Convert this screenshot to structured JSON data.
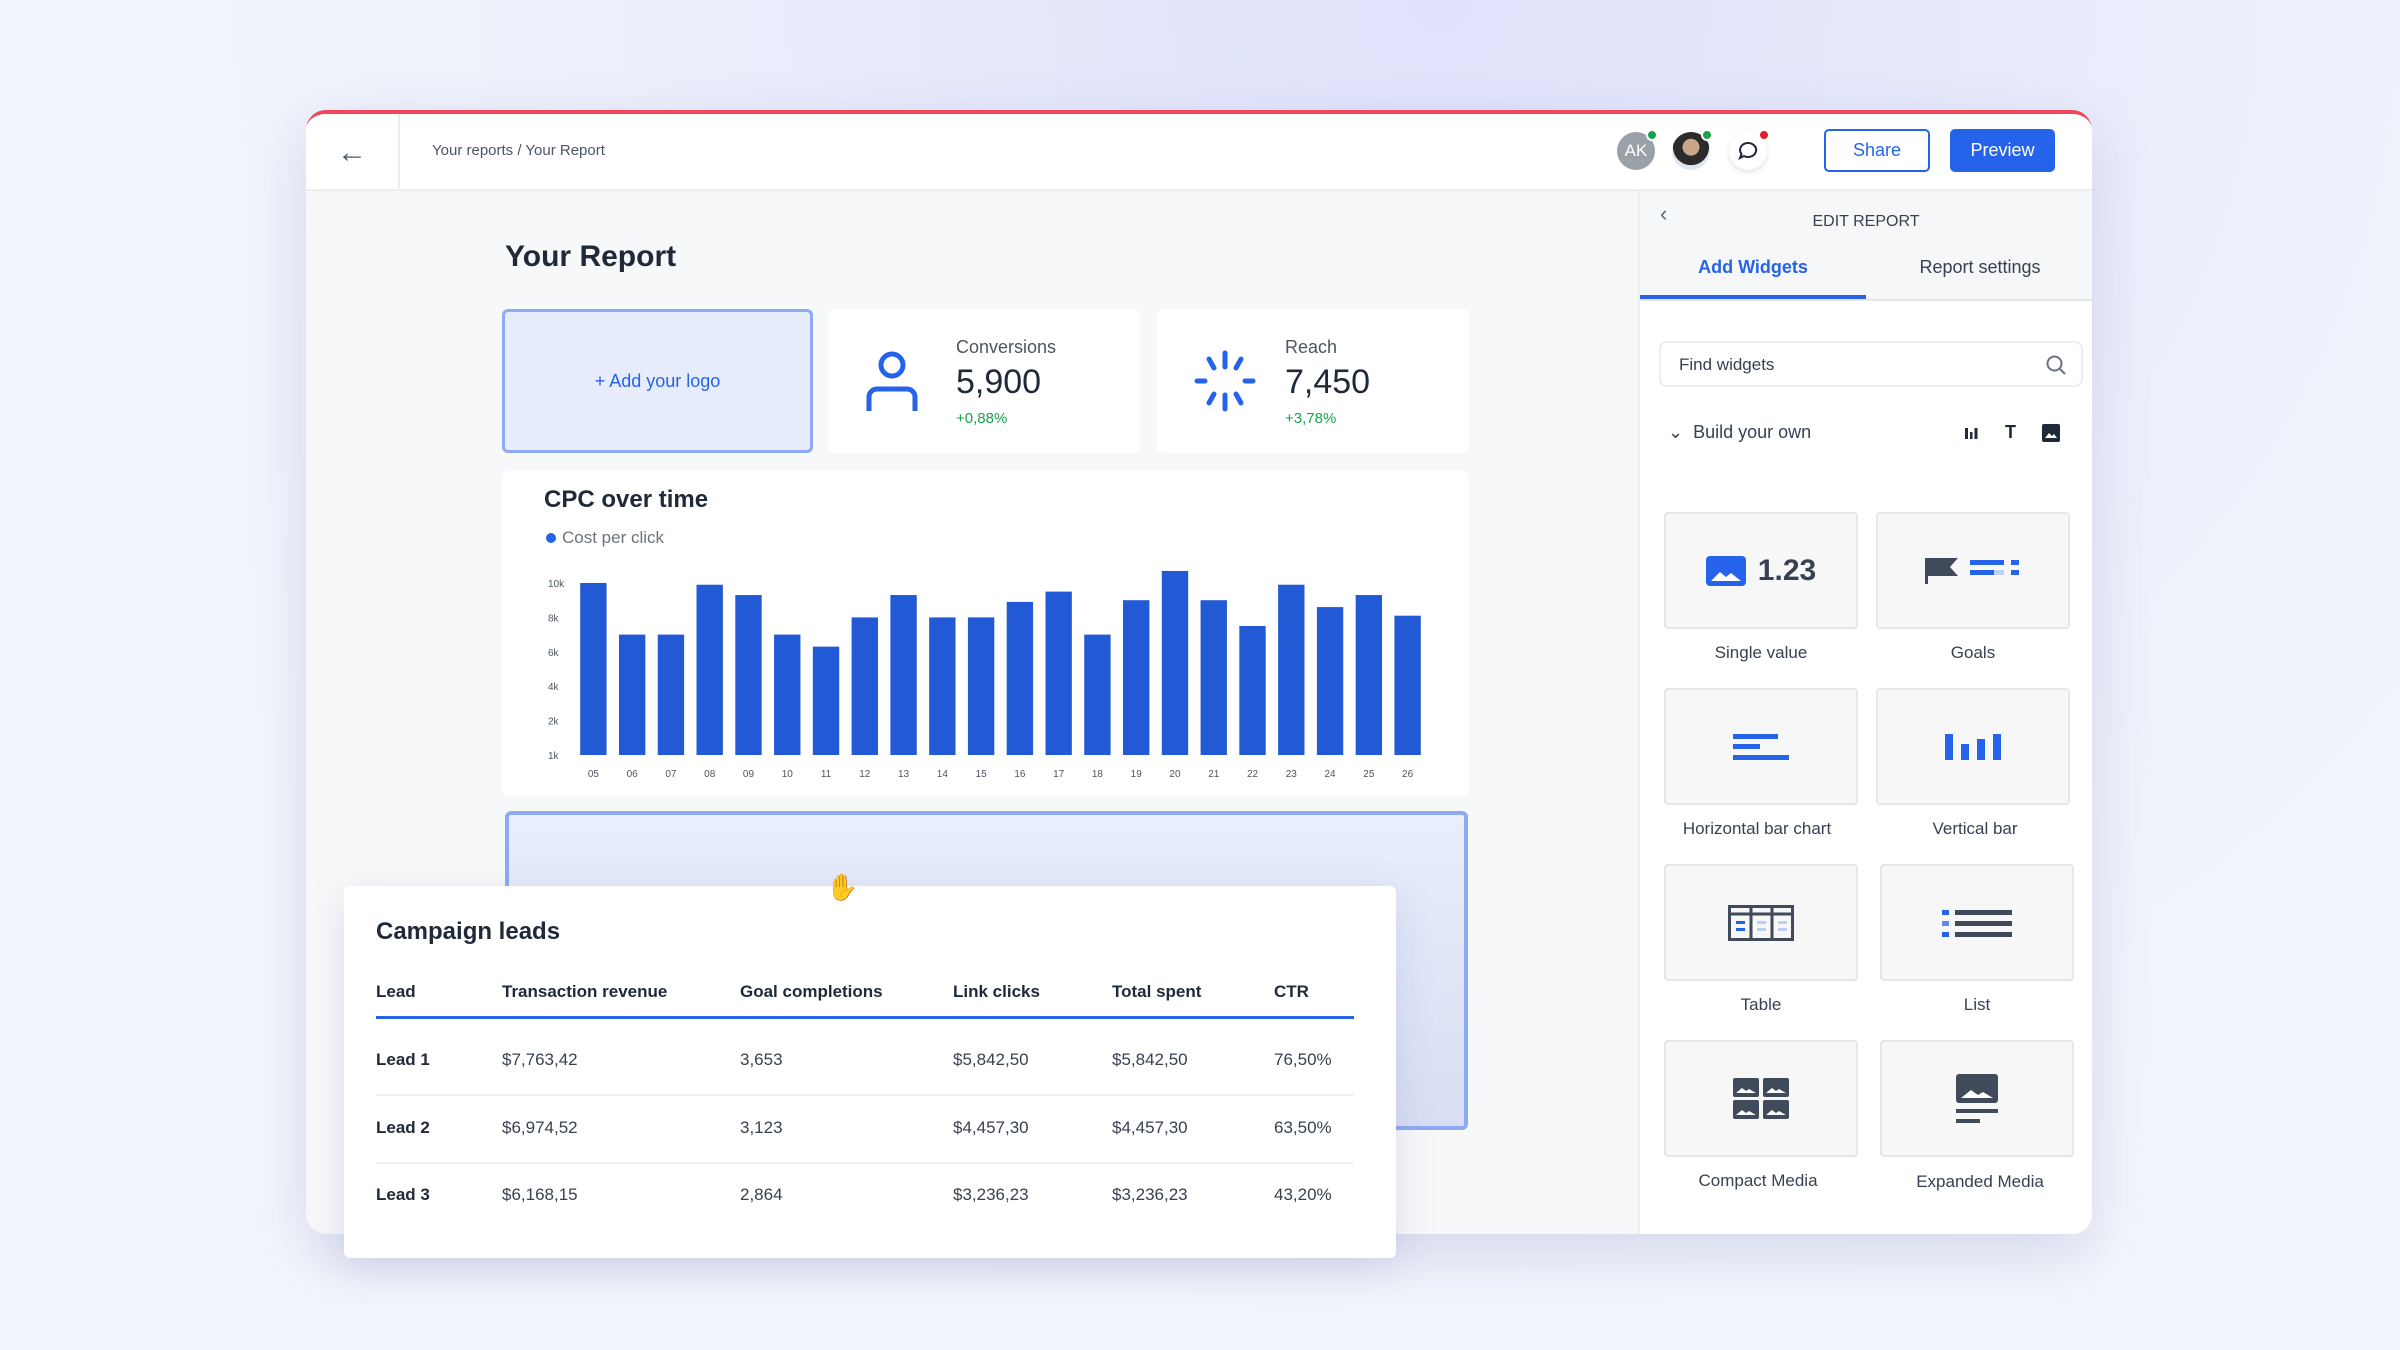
{
  "header": {
    "breadcrumb": "Your reports / Your Report",
    "avatar_initials": "AK",
    "share": "Share",
    "preview": "Preview"
  },
  "report": {
    "title": "Your Report",
    "add_logo": "+ Add your logo",
    "kpis": [
      {
        "label": "Conversions",
        "value": "5,900",
        "change": "+0,88%"
      },
      {
        "label": "Reach",
        "value": "7,450",
        "change": "+3,78%"
      }
    ]
  },
  "chart_data": {
    "type": "bar",
    "title": "CPC over time",
    "legend": [
      "Cost per click"
    ],
    "categories": [
      "05",
      "06",
      "07",
      "08",
      "09",
      "10",
      "11",
      "12",
      "13",
      "14",
      "15",
      "16",
      "17",
      "18",
      "19",
      "20",
      "21",
      "22",
      "23",
      "24",
      "25",
      "26"
    ],
    "values": [
      10000,
      7000,
      7000,
      9900,
      9300,
      7000,
      6300,
      8000,
      9300,
      8000,
      8000,
      8900,
      9500,
      7000,
      9000,
      10700,
      9000,
      7500,
      9900,
      8600,
      9300,
      8100
    ],
    "yticks": [
      1000,
      2000,
      4000,
      6000,
      8000,
      10000
    ],
    "ytick_labels": [
      "1k",
      "2k",
      "4k",
      "6k",
      "8k",
      "10k"
    ],
    "color": "#2259d4"
  },
  "leads": {
    "title": "Campaign leads",
    "columns": [
      "Lead",
      "Transaction revenue",
      "Goal completions",
      "Link clicks",
      "Total spent",
      "CTR"
    ],
    "rows": [
      [
        "Lead 1",
        "$7,763,42",
        "3,653",
        "$5,842,50",
        "$5,842,50",
        "76,50%"
      ],
      [
        "Lead 2",
        "$6,974,52",
        "3,123",
        "$4,457,30",
        "$4,457,30",
        "63,50%"
      ],
      [
        "Lead 3",
        "$6,168,15",
        "2,864",
        "$3,236,23",
        "$3,236,23",
        "43,20%"
      ]
    ]
  },
  "panel": {
    "title": "EDIT REPORT",
    "tabs": [
      "Add Widgets",
      "Report settings"
    ],
    "search_placeholder": "Find widgets",
    "section": "Build your own",
    "single_value_sample": "1.23",
    "widgets": [
      "Single value",
      "Goals",
      "Horizontal bar chart",
      "Vertical bar",
      "Table",
      "List",
      "Compact Media",
      "Expanded Media"
    ]
  },
  "colors": {
    "accent": "#2563eb",
    "topbar": "#f0475a",
    "positive": "#16a34a"
  }
}
